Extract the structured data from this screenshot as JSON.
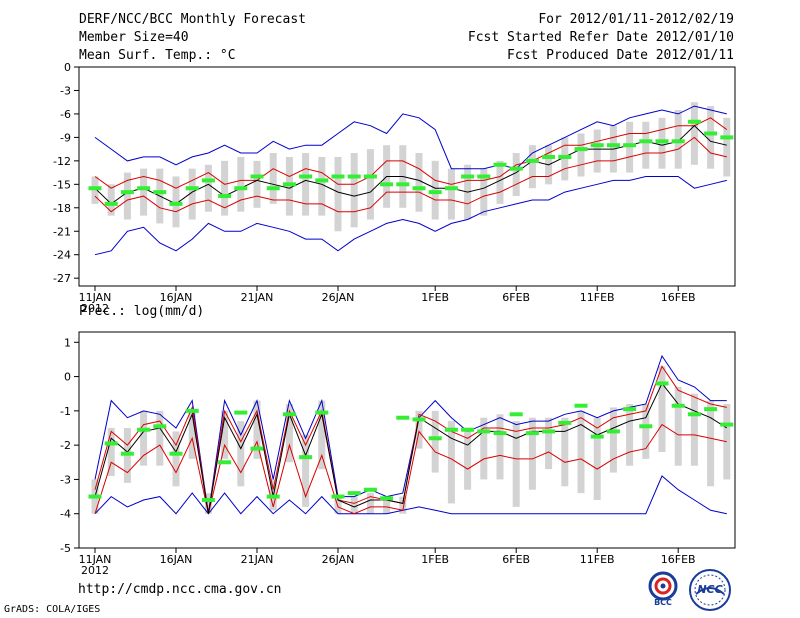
{
  "header": {
    "title": "DERF/NCC/BCC Monthly Forecast",
    "member": "Member Size=40",
    "variable": "Mean Surf. Temp.: °C",
    "period": "For 2012/01/11-2012/02/19",
    "started": "Fcst Started Refer Date 2012/01/10",
    "produced": "Fcst Produced Date 2012/01/11"
  },
  "footer": {
    "url": "http://cmdp.ncc.cma.gov.cn",
    "credit": "GrADS: COLA/IGES",
    "logo1": "BCC",
    "logo2": "NCC"
  },
  "colors": {
    "max_min": "#0000cc",
    "spread": "#dd0000",
    "mean": "#000000",
    "obs": "#33ee33",
    "box": "#d3d3d3"
  },
  "chart_data": [
    {
      "type": "line",
      "title": "Mean Surf. Temp.: °C",
      "x_tick_labels": [
        "11JAN",
        "16JAN",
        "21JAN",
        "26JAN",
        "1FEB",
        "6FEB",
        "11FEB",
        "16FEB"
      ],
      "x_tick_days": [
        0,
        5,
        10,
        15,
        21,
        26,
        31,
        36
      ],
      "year_label": "2012",
      "ylim": [
        -28,
        0
      ],
      "y_ticks": [
        0,
        -3,
        -6,
        -9,
        -12,
        -15,
        -18,
        -21,
        -24,
        -27
      ],
      "days": 40,
      "series": [
        {
          "name": "max",
          "values": [
            -9,
            -10.5,
            -12,
            -11.5,
            -11.5,
            -12.5,
            -11.5,
            -11,
            -10,
            -11,
            -11,
            -9.5,
            -10.5,
            -10,
            -10,
            -8.5,
            -7,
            -7.5,
            -8.5,
            -6,
            -6.5,
            -8,
            -13,
            -13,
            -13,
            -12.5,
            -13,
            -11,
            -10,
            -9,
            -8,
            -7,
            -7.5,
            -6.5,
            -6,
            -5.5,
            -6,
            -5,
            -5.5,
            -6
          ]
        },
        {
          "name": "upper",
          "values": [
            -14,
            -15.5,
            -14.5,
            -14,
            -14.5,
            -15.5,
            -14.5,
            -13.5,
            -15,
            -14.5,
            -14.5,
            -13,
            -14,
            -13,
            -13.5,
            -15,
            -15,
            -14,
            -12,
            -12,
            -13,
            -14.5,
            -15,
            -14.5,
            -14.5,
            -14,
            -12.5,
            -12,
            -11,
            -10,
            -10,
            -9.5,
            -9,
            -8.5,
            -8.5,
            -8,
            -7.5,
            -7.5,
            -6.5,
            -8
          ]
        },
        {
          "name": "mean",
          "values": [
            -15.5,
            -17.5,
            -16,
            -15.5,
            -16.5,
            -17.5,
            -16,
            -15,
            -16.5,
            -15.5,
            -14.5,
            -15,
            -15.5,
            -14.5,
            -15,
            -16,
            -16.5,
            -16,
            -14,
            -14,
            -14.5,
            -15.5,
            -15.5,
            -16,
            -15.5,
            -14.5,
            -13.5,
            -12,
            -12.5,
            -11.5,
            -10.5,
            -10.5,
            -10.5,
            -10,
            -9.5,
            -10,
            -9.5,
            -7.5,
            -9.5,
            -10
          ]
        },
        {
          "name": "lower",
          "values": [
            -16.5,
            -18.5,
            -17,
            -16.5,
            -18,
            -18.5,
            -17.5,
            -17,
            -18,
            -17,
            -16.5,
            -17,
            -17,
            -17.5,
            -17.5,
            -18.5,
            -18.5,
            -18,
            -16,
            -16,
            -16,
            -17,
            -17,
            -17.5,
            -16.5,
            -16,
            -15,
            -14,
            -14,
            -13,
            -12.5,
            -12,
            -12,
            -11.5,
            -11,
            -11,
            -10.5,
            -9,
            -11,
            -11.5
          ]
        },
        {
          "name": "min",
          "values": [
            -24,
            -23.5,
            -21,
            -20.5,
            -22.5,
            -23.5,
            -22,
            -20,
            -21,
            -21,
            -20,
            -20.5,
            -21,
            -22,
            -22,
            -23.5,
            -22,
            -21,
            -20,
            -19.5,
            -20,
            -21,
            -20,
            -19.5,
            -18.5,
            -18,
            -17.5,
            -17,
            -17,
            -16,
            -15.5,
            -15,
            -14.5,
            -14.5,
            -14,
            -14,
            -14,
            -15.5,
            -15,
            -14.5
          ]
        },
        {
          "name": "box_top",
          "values": [
            -14,
            -15,
            -13.5,
            -13,
            -13,
            -14,
            -13,
            -12.5,
            -12,
            -11.5,
            -12,
            -11,
            -11.5,
            -11,
            -11.5,
            -11.5,
            -11,
            -10.5,
            -10,
            -10,
            -11,
            -12,
            -13,
            -12.5,
            -13,
            -12,
            -11,
            -10,
            -10,
            -9,
            -8.5,
            -8,
            -7.5,
            -7,
            -7,
            -6.5,
            -5.5,
            -4.5,
            -5,
            -6.5
          ]
        },
        {
          "name": "box_bot",
          "values": [
            -17.5,
            -19,
            -19.5,
            -19,
            -20,
            -20.5,
            -19.5,
            -18.5,
            -19,
            -18.5,
            -18,
            -17.5,
            -19,
            -19,
            -19,
            -21,
            -20.5,
            -19.5,
            -18,
            -18,
            -18.5,
            -19.5,
            -19.5,
            -19.5,
            -19,
            -17.5,
            -16.5,
            -15.5,
            -15,
            -14.5,
            -14,
            -13.5,
            -13.5,
            -13.5,
            -13,
            -13,
            -13,
            -12.5,
            -13,
            -14
          ]
        },
        {
          "name": "observed",
          "values": [
            -15.5,
            -17.5,
            -16,
            -15.5,
            -16,
            -17.5,
            -15.5,
            -14.5,
            -16.5,
            -15.5,
            -14,
            -15.5,
            -15,
            -14,
            -14.5,
            -14,
            -14,
            -14,
            -15,
            -15,
            -15.5,
            -16,
            -15.5,
            -14,
            -14,
            -12.5,
            -13,
            -12,
            -11.5,
            -11.5,
            -10.5,
            -10,
            -10,
            -10,
            -9.5,
            -9.5,
            -9.5,
            -7,
            -8.5,
            -9
          ]
        }
      ]
    },
    {
      "type": "line",
      "title": "Prec.: log(mm/d)",
      "x_tick_labels": [
        "11JAN",
        "16JAN",
        "21JAN",
        "26JAN",
        "1FEB",
        "6FEB",
        "11FEB",
        "16FEB"
      ],
      "x_tick_days": [
        0,
        5,
        10,
        15,
        21,
        26,
        31,
        36
      ],
      "year_label": "2012",
      "ylim": [
        -5,
        1.3
      ],
      "y_ticks": [
        1,
        0,
        -1,
        -2,
        -3,
        -4,
        -5
      ],
      "days": 40,
      "series": [
        {
          "name": "max",
          "values": [
            -3,
            -0.7,
            -1.2,
            -1,
            -1.1,
            -1.5,
            -0.7,
            -4,
            -0.7,
            -1.7,
            -0.7,
            -3,
            -0.7,
            -1.8,
            -0.7,
            -3.5,
            -3.5,
            -3.3,
            -3.5,
            -3.4,
            -1.2,
            -0.7,
            -1.2,
            -1.6,
            -1.4,
            -1.2,
            -1.4,
            -1.3,
            -1.3,
            -1.1,
            -1,
            -1.2,
            -1,
            -0.9,
            -0.8,
            0.6,
            -0.1,
            -0.3,
            -0.7,
            -0.7
          ]
        },
        {
          "name": "upper",
          "values": [
            -3.3,
            -1.6,
            -2,
            -1.4,
            -1.3,
            -2,
            -0.9,
            -4,
            -1,
            -1.9,
            -1,
            -3.3,
            -1,
            -2,
            -1,
            -3.6,
            -3.7,
            -3.5,
            -3.6,
            -3.7,
            -1.1,
            -1.3,
            -1.6,
            -1.8,
            -1.5,
            -1.5,
            -1.6,
            -1.5,
            -1.5,
            -1.4,
            -1.2,
            -1.5,
            -1.2,
            -1.1,
            -1,
            0.3,
            -0.4,
            -0.6,
            -0.8,
            -0.9
          ]
        },
        {
          "name": "mean",
          "values": [
            -3.5,
            -1.8,
            -2.2,
            -1.6,
            -1.5,
            -2.2,
            -1.1,
            -4,
            -1.2,
            -2.1,
            -1.1,
            -3.5,
            -1.1,
            -2.3,
            -1.1,
            -3.6,
            -3.8,
            -3.6,
            -3.6,
            -3.7,
            -1.2,
            -1.5,
            -1.8,
            -2,
            -1.6,
            -1.6,
            -1.8,
            -1.6,
            -1.6,
            -1.6,
            -1.4,
            -1.7,
            -1.5,
            -1.3,
            -1.2,
            -0.2,
            -0.8,
            -1,
            -1.2,
            -1.5
          ]
        },
        {
          "name": "lower",
          "values": [
            -4,
            -2.5,
            -2.8,
            -2.3,
            -2,
            -2.8,
            -1.8,
            -4,
            -2,
            -2.8,
            -1.9,
            -3.8,
            -2,
            -3.5,
            -2.3,
            -3.8,
            -4,
            -3.8,
            -3.8,
            -3.9,
            -1.6,
            -2.2,
            -2.4,
            -2.7,
            -2.4,
            -2.3,
            -2.4,
            -2.4,
            -2.2,
            -2.5,
            -2.4,
            -2.7,
            -2.4,
            -2.2,
            -2.1,
            -1.4,
            -1.7,
            -1.7,
            -1.8,
            -1.9
          ]
        },
        {
          "name": "min",
          "values": [
            -4,
            -3.5,
            -3.8,
            -3.6,
            -3.5,
            -4,
            -3.4,
            -4,
            -3.4,
            -4,
            -3.5,
            -4,
            -3.6,
            -4,
            -3.5,
            -4,
            -4,
            -4,
            -4,
            -3.9,
            -3.8,
            -3.9,
            -4,
            -4,
            -4,
            -4,
            -4,
            -4,
            -4,
            -4,
            -4,
            -4,
            -4,
            -4,
            -4,
            -2.9,
            -3.3,
            -3.6,
            -3.9,
            -4
          ]
        },
        {
          "name": "box_top",
          "values": [
            -3,
            -1.5,
            -1.5,
            -1,
            -1,
            -1.6,
            -1,
            -3.4,
            -1,
            -1.3,
            -0.7,
            -3,
            -0.8,
            -1.7,
            -0.7,
            -3.5,
            -3.5,
            -3.4,
            -3.5,
            -3.5,
            -1,
            -1,
            -1.3,
            -1.6,
            -1.2,
            -1.1,
            -1.3,
            -1.2,
            -1.2,
            -1.2,
            -1,
            -1.2,
            -0.9,
            -0.8,
            -0.8,
            0.3,
            -0.3,
            -0.5,
            -0.7,
            -0.8
          ]
        },
        {
          "name": "box_bot",
          "values": [
            -4,
            -2.9,
            -3.1,
            -2.6,
            -2.6,
            -3.2,
            -2.4,
            -4,
            -2.4,
            -3.2,
            -2.4,
            -3.9,
            -2.5,
            -3.8,
            -2.7,
            -4,
            -4,
            -4,
            -4,
            -4,
            -2.1,
            -2.8,
            -3.7,
            -3.3,
            -3,
            -3,
            -3.8,
            -3.3,
            -2.7,
            -3.2,
            -3.4,
            -3.6,
            -2.8,
            -2.6,
            -2.4,
            -2.2,
            -2.6,
            -2.6,
            -3.2,
            -3
          ]
        },
        {
          "name": "observed",
          "values": [
            -3.5,
            -1.95,
            -2.25,
            -1.55,
            -1.45,
            -2.25,
            -1,
            -3.6,
            -2.5,
            -1.05,
            -2.1,
            -3.5,
            -1.1,
            -2.35,
            -1.05,
            -3.5,
            -3.4,
            -3.3,
            -3.55,
            -1.2,
            -1.25,
            -1.8,
            -1.55,
            -1.55,
            -1.6,
            -1.65,
            -1.1,
            -1.65,
            -1.6,
            -1.35,
            -0.85,
            -1.75,
            -1.6,
            -0.95,
            -1.45,
            -0.2,
            -0.85,
            -1.1,
            -0.95,
            -1.4
          ]
        }
      ]
    }
  ]
}
